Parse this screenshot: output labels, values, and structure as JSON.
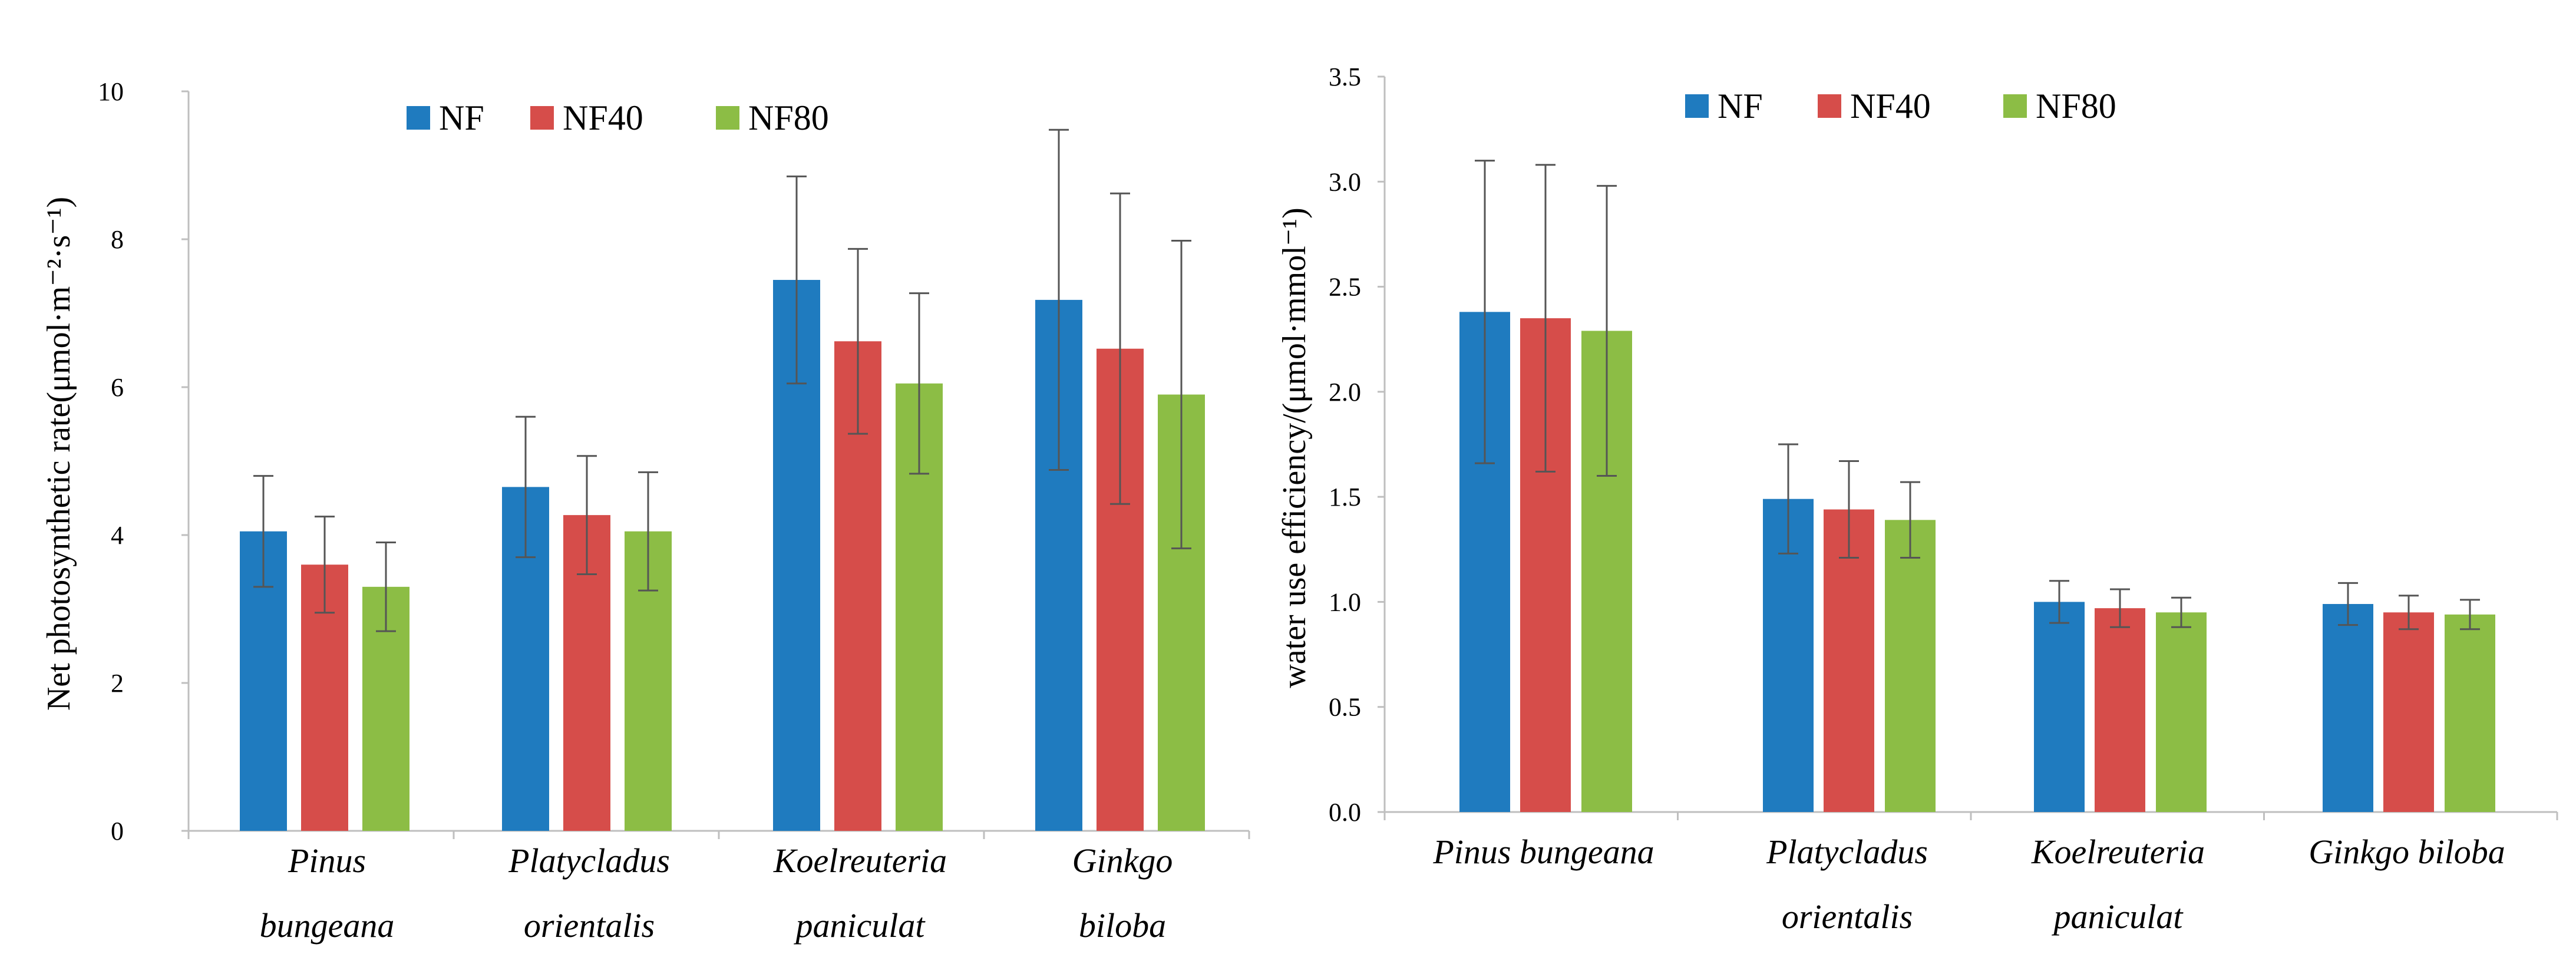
{
  "chart_data": [
    {
      "type": "bar",
      "title": "",
      "xlabel": "",
      "ylabel": "Net photosynthetic rate(μmol·m⁻²·s⁻¹)",
      "ylim": [
        0,
        10
      ],
      "yticks": [
        "0",
        "2",
        "4",
        "6",
        "8",
        "10"
      ],
      "grid": false,
      "legend_position": "top",
      "categories": [
        [
          "Pinus",
          "bungeana"
        ],
        [
          "Platycladus",
          "orientalis"
        ],
        [
          "Koelreuteria",
          "paniculat"
        ],
        [
          "Ginkgo",
          "biloba"
        ]
      ],
      "series": [
        {
          "name": "NF",
          "color": "#1f7bbf",
          "values": [
            4.05,
            4.65,
            7.45,
            7.18
          ],
          "errors": [
            0.75,
            0.95,
            1.4,
            2.3
          ]
        },
        {
          "name": "NF40",
          "color": "#d64d4a",
          "values": [
            3.6,
            4.27,
            6.62,
            6.52
          ],
          "errors": [
            0.65,
            0.8,
            1.25,
            2.1
          ]
        },
        {
          "name": "NF80",
          "color": "#8cbd45",
          "values": [
            3.3,
            4.05,
            6.05,
            5.9
          ],
          "errors": [
            0.6,
            0.8,
            1.22,
            2.08
          ]
        }
      ]
    },
    {
      "type": "bar",
      "title": "",
      "xlabel": "",
      "ylabel": "water use efficiency/(μmol·mmol⁻¹)",
      "ylim": [
        0,
        3.5
      ],
      "yticks": [
        "0.0",
        "0.5",
        "1.0",
        "1.5",
        "2.0",
        "2.5",
        "3.0",
        "3.5"
      ],
      "grid": false,
      "legend_position": "top",
      "categories": [
        [
          "Pinus bungeana"
        ],
        [
          "Platycladus",
          "orientalis"
        ],
        [
          "Koelreuteria",
          "paniculat"
        ],
        [
          "Ginkgo biloba"
        ]
      ],
      "series": [
        {
          "name": "NF",
          "color": "#1f7bbf",
          "values": [
            2.38,
            1.49,
            1.0,
            0.99
          ],
          "errors": [
            0.72,
            0.26,
            0.1,
            0.1
          ]
        },
        {
          "name": "NF40",
          "color": "#d64d4a",
          "values": [
            2.35,
            1.44,
            0.97,
            0.95
          ],
          "errors": [
            0.73,
            0.23,
            0.09,
            0.08
          ]
        },
        {
          "name": "NF80",
          "color": "#8cbd45",
          "values": [
            2.29,
            1.39,
            0.95,
            0.94
          ],
          "errors": [
            0.69,
            0.18,
            0.07,
            0.07
          ]
        }
      ]
    }
  ]
}
